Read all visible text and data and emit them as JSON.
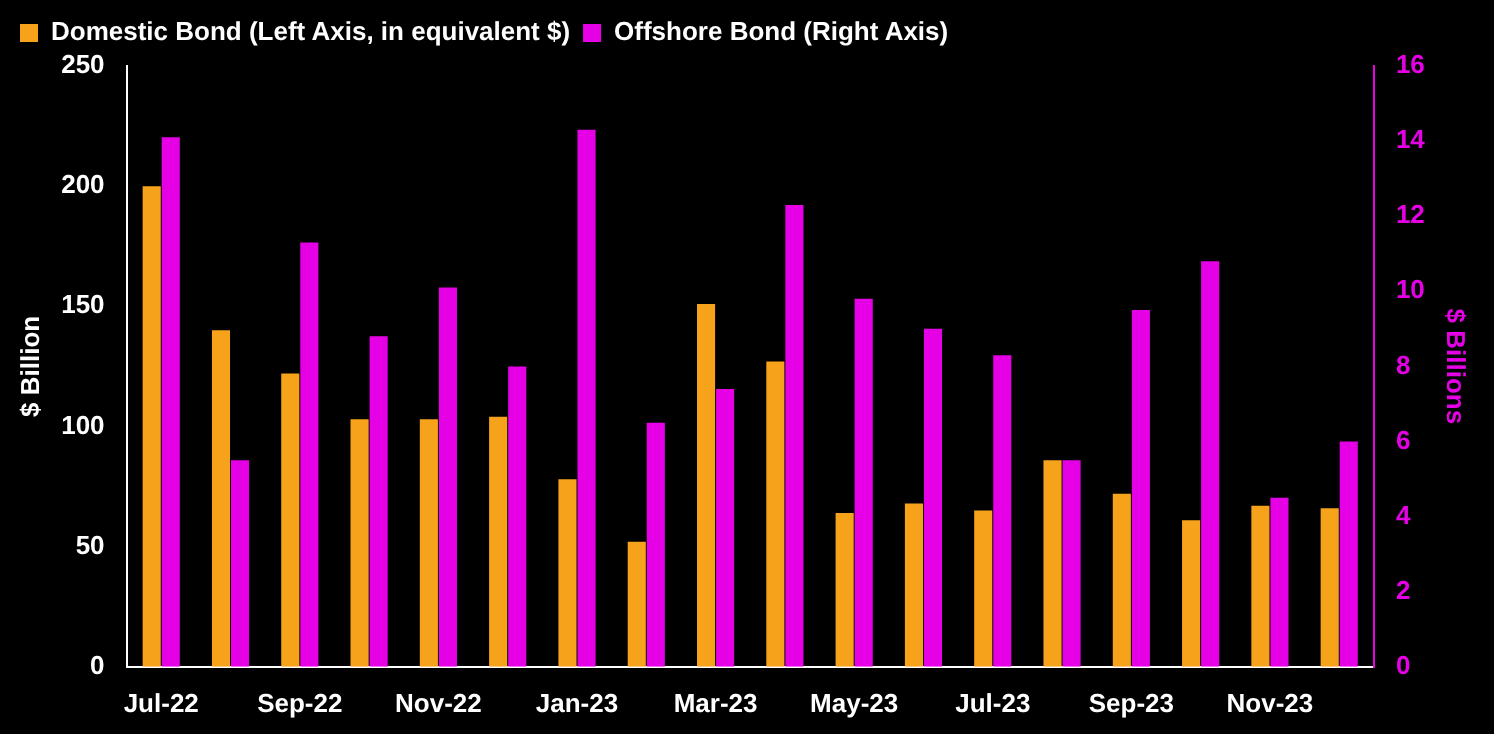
{
  "chart_data": {
    "type": "bar",
    "categories": [
      "Jul-22",
      null,
      "Sep-22",
      null,
      "Nov-22",
      null,
      "Jan-23",
      null,
      "Mar-23",
      null,
      "May-23",
      null,
      "Jul-23",
      null,
      "Sep-23",
      null,
      "Nov-23",
      null
    ],
    "series": [
      {
        "name": "Domestic Bond (Left Axis, in equivalent $)",
        "color": "#f7a21b",
        "values": [
          200,
          140,
          122,
          103,
          103,
          104,
          78,
          52,
          151,
          127,
          64,
          68,
          65,
          86,
          72,
          61,
          67,
          66
        ]
      },
      {
        "name": "Offshore Bond (Right Axis)",
        "color": "#e600e6",
        "axis": "y2",
        "values": [
          14.1,
          5.5,
          11.3,
          8.8,
          10.1,
          8.0,
          14.3,
          6.5,
          7.4,
          12.3,
          9.8,
          9.0,
          8.3,
          5.5,
          9.5,
          10.8,
          4.5,
          6.0
        ]
      }
    ],
    "ylabel": "$ Billion",
    "y2label": "$ Billions",
    "ylim": [
      0,
      250
    ],
    "yticks": [
      0,
      50,
      100,
      150,
      200,
      250
    ],
    "y2lim": [
      0,
      16
    ],
    "y2ticks": [
      0,
      2,
      4,
      6,
      8,
      10,
      12,
      14,
      16
    ],
    "legend": "top left"
  }
}
